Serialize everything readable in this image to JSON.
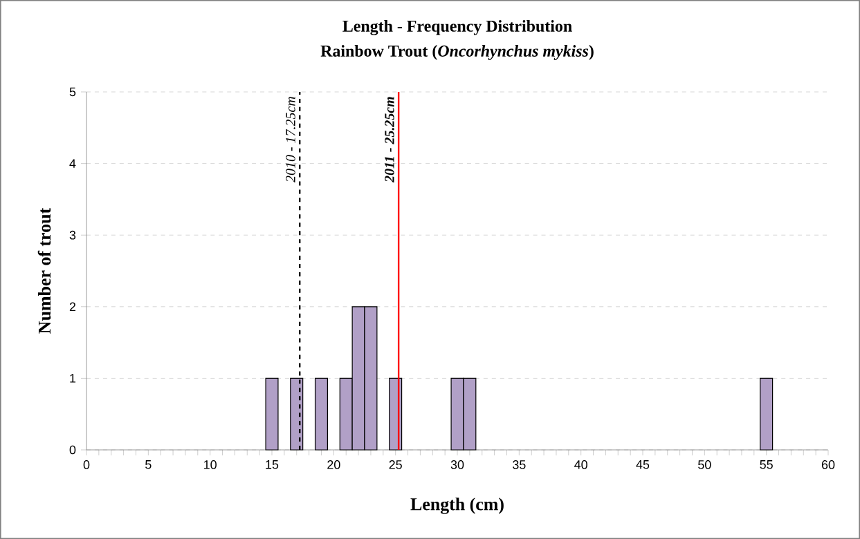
{
  "chart_data": {
    "type": "bar",
    "title": "Length - Frequency Distribution",
    "subtitle": "Rainbow Trout (*Oncorhynchus mykiss*)",
    "xlabel": "Length (cm)",
    "ylabel": "Number of trout",
    "x": [
      15,
      17,
      19,
      21,
      22,
      23,
      25,
      30,
      31,
      55
    ],
    "values": [
      1,
      1,
      1,
      1,
      2,
      2,
      1,
      1,
      1,
      1
    ],
    "color": "#b1a0c7",
    "xlim": [
      0,
      60
    ],
    "ylim": [
      0,
      5
    ],
    "yticks": [
      0,
      1,
      2,
      3,
      4,
      5
    ],
    "xticks": [
      0,
      {
        "value": 1,
        "label": null
      },
      {
        "value": 2,
        "label": null
      },
      {
        "value": 3,
        "label": null
      },
      {
        "value": 4,
        "label": null
      },
      5,
      {
        "value": 6,
        "label": null
      },
      {
        "value": 7,
        "label": null
      },
      {
        "value": 8,
        "label": null
      },
      {
        "value": 9,
        "label": null
      },
      10,
      {
        "value": 11,
        "label": null
      },
      {
        "value": 12,
        "label": null
      },
      {
        "value": 13,
        "label": null
      },
      {
        "value": 14,
        "label": null
      },
      15,
      {
        "value": 16,
        "label": null
      },
      {
        "value": 17,
        "label": null
      },
      {
        "value": 18,
        "label": null
      },
      {
        "value": 19,
        "label": null
      },
      20,
      {
        "value": 21,
        "label": null
      },
      {
        "value": 22,
        "label": null
      },
      {
        "value": 23,
        "label": null
      },
      {
        "value": 24,
        "label": null
      },
      25,
      {
        "value": 26,
        "label": null
      },
      {
        "value": 27,
        "label": null
      },
      {
        "value": 28,
        "label": null
      },
      {
        "value": 29,
        "label": null
      },
      30,
      {
        "value": 31,
        "label": null
      },
      {
        "value": 32,
        "label": null
      },
      {
        "value": 33,
        "label": null
      },
      {
        "value": 34,
        "label": null
      },
      35,
      {
        "value": 36,
        "label": null
      },
      {
        "value": 37,
        "label": null
      },
      {
        "value": 38,
        "label": null
      },
      {
        "value": 39,
        "label": null
      },
      40,
      {
        "value": 41,
        "label": null
      },
      {
        "value": 42,
        "label": null
      },
      {
        "value": 43,
        "label": null
      },
      {
        "value": 44,
        "label": null
      },
      45,
      {
        "value": 46,
        "label": null
      },
      {
        "value": 47,
        "label": null
      },
      {
        "value": 48,
        "label": null
      },
      {
        "value": 49,
        "label": null
      },
      50,
      {
        "value": 51,
        "label": null
      },
      {
        "value": 52,
        "label": null
      },
      {
        "value": 53,
        "label": null
      },
      {
        "value": 54,
        "label": null
      },
      55,
      {
        "value": 56,
        "label": null
      },
      {
        "value": 57,
        "label": null
      },
      {
        "value": 58,
        "label": null
      },
      {
        "value": 59,
        "label": null
      },
      60
    ],
    "grid": "y",
    "ref_lines": [
      {
        "axis": "x",
        "value": 17.25,
        "label": "2010 - 17.25cm",
        "color": "#000000",
        "line_style": "dashed"
      },
      {
        "axis": "x",
        "value": 25.25,
        "label": "2011 - 25.25cm",
        "color": "#ff0000",
        "line_style": "solid"
      }
    ]
  }
}
